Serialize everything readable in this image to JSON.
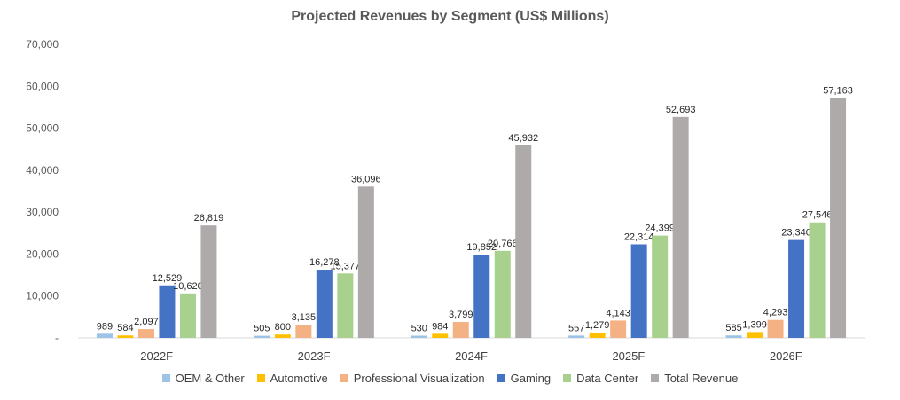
{
  "chart_data": {
    "type": "bar",
    "title": "Projected Revenues by Segment (US$ Millions)",
    "categories": [
      "2022F",
      "2023F",
      "2024F",
      "2025F",
      "2026F"
    ],
    "series": [
      {
        "name": "OEM & Other",
        "color": "#9DC3E6",
        "values": [
          989,
          505,
          530,
          557,
          585
        ],
        "labels": [
          "989",
          "505",
          "530",
          "557",
          "585"
        ]
      },
      {
        "name": "Automotive",
        "color": "#FFC000",
        "values": [
          584,
          800,
          984,
          1279,
          1399
        ],
        "labels": [
          "584",
          "800",
          "984",
          "1,279",
          "1,399"
        ]
      },
      {
        "name": "Professional Visualization",
        "color": "#F4B183",
        "values": [
          2097,
          3135,
          3799,
          4143,
          4293
        ],
        "labels": [
          "2,097",
          "3,135",
          "3,799",
          "4,143",
          "4,293"
        ]
      },
      {
        "name": "Gaming",
        "color": "#4472C4",
        "values": [
          12529,
          16278,
          19852,
          22314,
          23340
        ],
        "labels": [
          "12,529",
          "16,278",
          "19,852",
          "22,314",
          "23,340"
        ]
      },
      {
        "name": "Data Center",
        "color": "#A9D18E",
        "values": [
          10620,
          15377,
          20766,
          24399,
          27546
        ],
        "labels": [
          "10,620",
          "15,377",
          "20,766",
          "24,399",
          "27,546"
        ]
      },
      {
        "name": "Total Revenue",
        "color": "#AEAAAA",
        "values": [
          26819,
          36096,
          45932,
          52693,
          57163
        ],
        "labels": [
          "26,819",
          "36,096",
          "45,932",
          "52,693",
          "57,163"
        ]
      }
    ],
    "ylim": [
      0,
      70000
    ],
    "yticks": [
      0,
      10000,
      20000,
      30000,
      40000,
      50000,
      60000,
      70000
    ],
    "ytick_labels": [
      "-",
      "10,000",
      "20,000",
      "30,000",
      "40,000",
      "50,000",
      "60,000",
      "70,000"
    ],
    "xlabel": "",
    "ylabel": "",
    "grid": false,
    "legend_position": "bottom"
  }
}
